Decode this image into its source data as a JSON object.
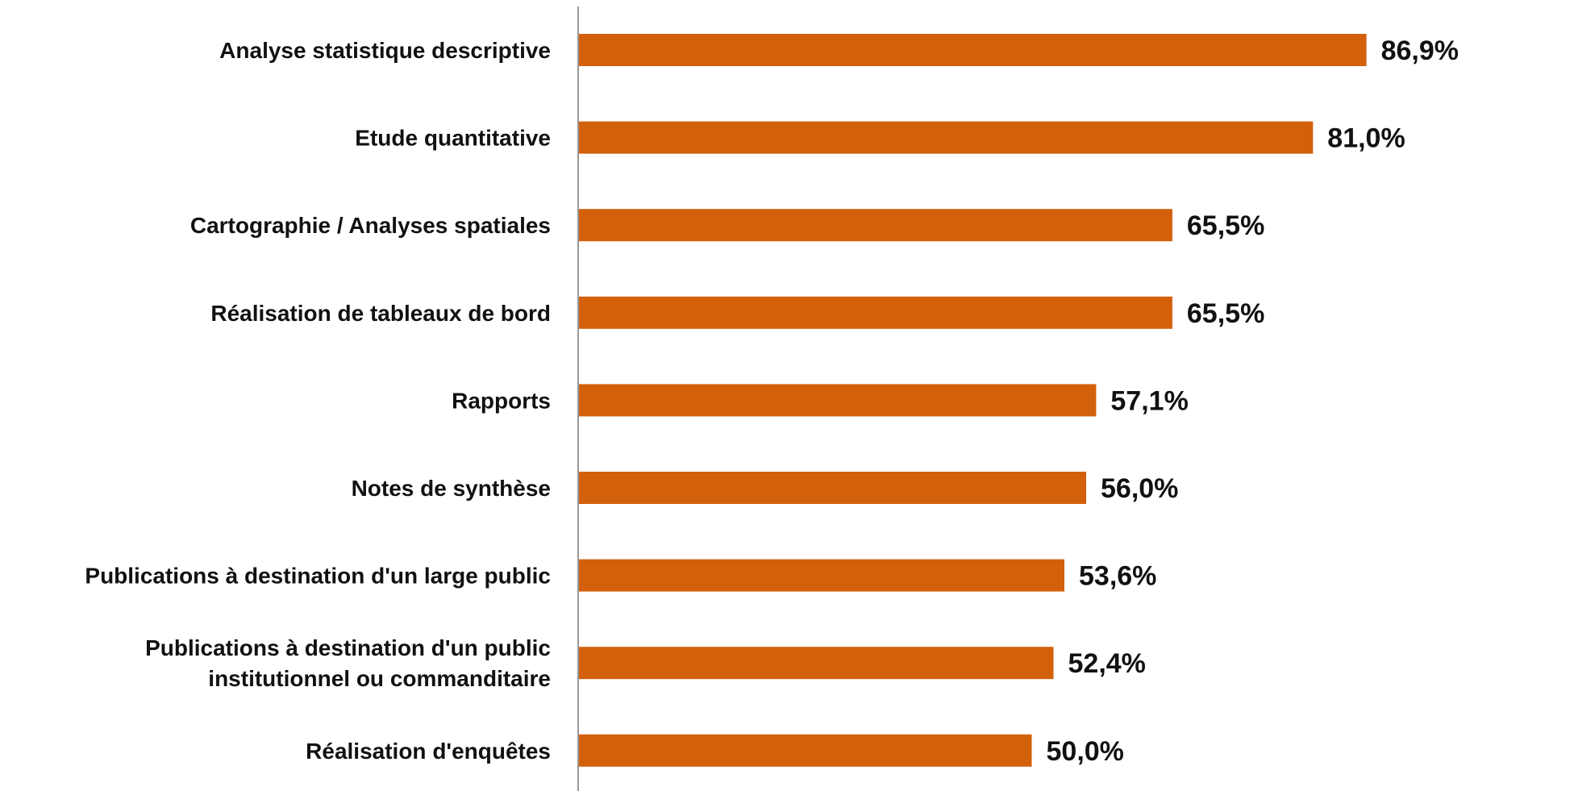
{
  "chart_data": {
    "type": "bar",
    "orientation": "horizontal",
    "categories": [
      "Analyse statistique descriptive",
      "Etude quantitative",
      "Cartographie / Analyses spatiales",
      "Réalisation de tableaux de bord",
      "Rapports",
      "Notes de synthèse",
      "Publications à destination d'un large public",
      "Publications à destination d'un public institutionnel ou commanditaire",
      "Réalisation d'enquêtes"
    ],
    "category_label_lines": [
      [
        "Analyse statistique descriptive"
      ],
      [
        "Etude quantitative"
      ],
      [
        "Cartographie / Analyses spatiales"
      ],
      [
        "Réalisation de tableaux de bord"
      ],
      [
        "Rapports"
      ],
      [
        "Notes de synthèse"
      ],
      [
        "Publications à destination d'un large public"
      ],
      [
        "Publications à destination d'un public",
        "institutionnel ou commanditaire"
      ],
      [
        "Réalisation d'enquêtes"
      ]
    ],
    "values": [
      86.9,
      81.0,
      65.5,
      65.5,
      57.1,
      56.0,
      53.6,
      52.4,
      50.0
    ],
    "value_labels": [
      "86,9%",
      "81,0%",
      "65,5%",
      "65,5%",
      "57,1%",
      "56,0%",
      "53,6%",
      "52,4%",
      "50,0%"
    ],
    "xlim": [
      0,
      100
    ],
    "title": "",
    "xlabel": "",
    "ylabel": "",
    "grid": false,
    "legend": false,
    "bar_color": "#D3600B",
    "axis_color": "#999999"
  }
}
